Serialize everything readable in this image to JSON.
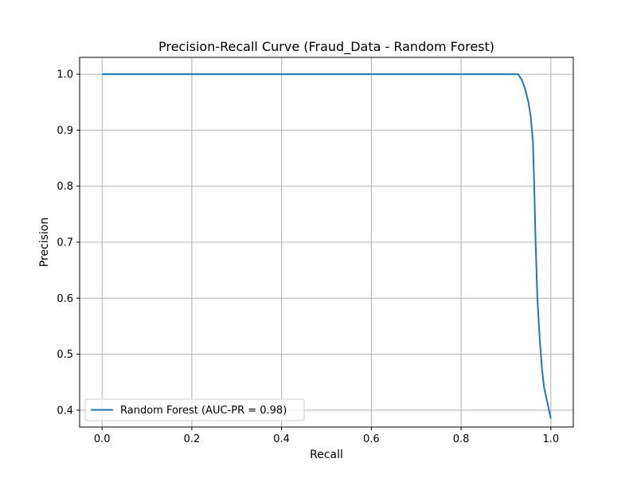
{
  "chart_data": {
    "type": "line",
    "title": "Precision-Recall Curve (Fraud_Data - Random Forest)",
    "xlabel": "Recall",
    "ylabel": "Precision",
    "xlim": [
      -0.05,
      1.05
    ],
    "ylim": [
      0.37,
      1.03
    ],
    "xticks": [
      0.0,
      0.2,
      0.4,
      0.6,
      0.8,
      1.0
    ],
    "xtick_labels": [
      "0.0",
      "0.2",
      "0.4",
      "0.6",
      "0.8",
      "1.0"
    ],
    "yticks": [
      0.4,
      0.5,
      0.6,
      0.7,
      0.8,
      0.9,
      1.0
    ],
    "ytick_labels": [
      "0.4",
      "0.5",
      "0.6",
      "0.7",
      "0.8",
      "0.9",
      "1.0"
    ],
    "grid": true,
    "legend_position": "lower-left",
    "series": [
      {
        "name": "Random Forest (AUC-PR = 0.98)",
        "color": "#1f77b4",
        "x": [
          0.0,
          0.9,
          0.927,
          0.935,
          0.942,
          0.95,
          0.955,
          0.96,
          0.963,
          0.966,
          0.97,
          0.975,
          0.98,
          0.985,
          1.0
        ],
        "y": [
          1.0,
          1.0,
          1.0,
          0.99,
          0.975,
          0.95,
          0.925,
          0.88,
          0.8,
          0.7,
          0.6,
          0.53,
          0.475,
          0.44,
          0.385
        ]
      }
    ]
  }
}
